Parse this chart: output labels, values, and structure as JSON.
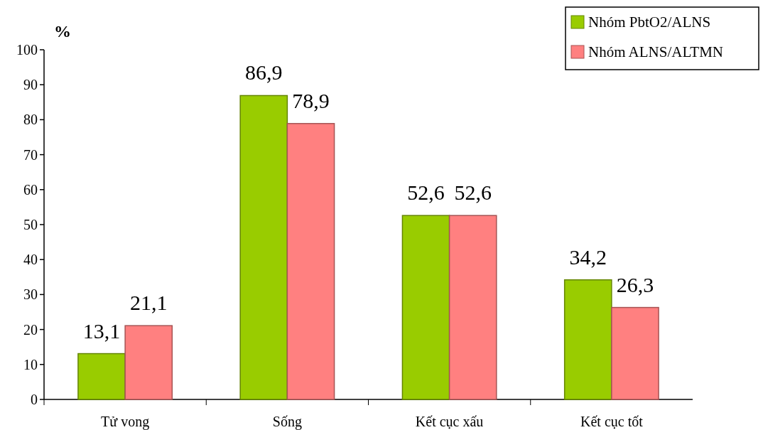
{
  "chart_data": {
    "type": "bar",
    "ylabel": "%",
    "categories": [
      "Tử vong",
      "Sống",
      "Kết cục xấu",
      "Kết cục tốt"
    ],
    "series": [
      {
        "name": "Nhóm PbtO2/ALNS",
        "color": "#99cc00",
        "values": [
          13.1,
          86.9,
          52.6,
          34.2
        ],
        "value_labels": [
          "13,1",
          "86,9",
          "52,6",
          "34,2"
        ]
      },
      {
        "name": "Nhóm ALNS/ALTMN",
        "color": "#ff8080",
        "values": [
          21.1,
          78.9,
          52.6,
          26.3
        ],
        "value_labels": [
          "21,1",
          "78,9",
          "52,6",
          "26,3"
        ]
      }
    ],
    "ylim": [
      0,
      100
    ],
    "yticks": [
      0,
      10,
      20,
      30,
      40,
      50,
      60,
      70,
      80,
      90,
      100
    ],
    "grid": false,
    "legend": "top right"
  }
}
